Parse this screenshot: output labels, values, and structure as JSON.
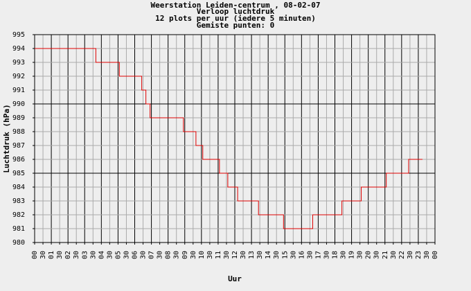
{
  "chart_data": {
    "type": "line",
    "title": [
      "Weerstation Leiden-centrum , 08-02-07",
      "Verloop luchtdruk",
      "12 plots per uur (iedere 5 minuten)",
      "Gemiste punten: 0"
    ],
    "xlabel": "Uur",
    "ylabel": "Luchtdruk (hPa)",
    "xlim": [
      0,
      24
    ],
    "ylim": [
      980,
      995
    ],
    "yticks": [
      980,
      981,
      982,
      983,
      984,
      985,
      986,
      987,
      988,
      989,
      990,
      991,
      992,
      993,
      994,
      995
    ],
    "major_every": 5,
    "xticks": [
      {
        "value": 0,
        "label": "00"
      },
      {
        "value": 0.5,
        "label": "30"
      },
      {
        "value": 1,
        "label": "01"
      },
      {
        "value": 1.5,
        "label": "30"
      },
      {
        "value": 2,
        "label": "02"
      },
      {
        "value": 2.5,
        "label": "30"
      },
      {
        "value": 3,
        "label": "03"
      },
      {
        "value": 3.5,
        "label": "30"
      },
      {
        "value": 4,
        "label": "04"
      },
      {
        "value": 4.5,
        "label": "30"
      },
      {
        "value": 5,
        "label": "05"
      },
      {
        "value": 5.5,
        "label": "30"
      },
      {
        "value": 6,
        "label": "06"
      },
      {
        "value": 6.5,
        "label": "30"
      },
      {
        "value": 7,
        "label": "07"
      },
      {
        "value": 7.5,
        "label": "30"
      },
      {
        "value": 8,
        "label": "08"
      },
      {
        "value": 8.5,
        "label": "30"
      },
      {
        "value": 9,
        "label": "09"
      },
      {
        "value": 9.5,
        "label": "30"
      },
      {
        "value": 10,
        "label": "10"
      },
      {
        "value": 10.5,
        "label": "30"
      },
      {
        "value": 11,
        "label": "11"
      },
      {
        "value": 11.5,
        "label": "30"
      },
      {
        "value": 12,
        "label": "12"
      },
      {
        "value": 12.5,
        "label": "30"
      },
      {
        "value": 13,
        "label": "13"
      },
      {
        "value": 13.5,
        "label": "30"
      },
      {
        "value": 14,
        "label": "14"
      },
      {
        "value": 14.5,
        "label": "30"
      },
      {
        "value": 15,
        "label": "15"
      },
      {
        "value": 15.5,
        "label": "30"
      },
      {
        "value": 16,
        "label": "16"
      },
      {
        "value": 16.5,
        "label": "30"
      },
      {
        "value": 17,
        "label": "17"
      },
      {
        "value": 17.5,
        "label": "30"
      },
      {
        "value": 18,
        "label": "18"
      },
      {
        "value": 18.5,
        "label": "30"
      },
      {
        "value": 19,
        "label": "19"
      },
      {
        "value": 19.5,
        "label": "30"
      },
      {
        "value": 20,
        "label": "20"
      },
      {
        "value": 20.5,
        "label": "30"
      },
      {
        "value": 21,
        "label": "21"
      },
      {
        "value": 21.5,
        "label": "30"
      },
      {
        "value": 22,
        "label": "22"
      },
      {
        "value": 22.5,
        "label": "30"
      },
      {
        "value": 23,
        "label": "23"
      },
      {
        "value": 23.5,
        "label": "30"
      },
      {
        "value": 24,
        "label": "00"
      }
    ],
    "series": [
      {
        "color": "#dd0000",
        "x": [
          0,
          3.67,
          3.67,
          5.08,
          5.08,
          6.42,
          6.42,
          6.67,
          6.67,
          6.92,
          6.92,
          8.92,
          8.92,
          9.67,
          9.67,
          10.08,
          10.08,
          11.08,
          11.08,
          11.58,
          11.58,
          12.17,
          12.17,
          13.42,
          13.42,
          14.92,
          14.92,
          16.67,
          16.67,
          18.42,
          18.42,
          19.58,
          19.58,
          21.08,
          21.08,
          22.42,
          22.42,
          23.25
        ],
        "values": [
          994,
          994,
          993,
          993,
          992,
          992,
          991,
          991,
          990,
          990,
          989,
          989,
          988,
          988,
          987,
          987,
          986,
          986,
          985,
          985,
          984,
          984,
          983,
          983,
          982,
          982,
          981,
          981,
          982,
          982,
          983,
          983,
          984,
          984,
          985,
          985,
          986,
          986
        ]
      }
    ]
  }
}
